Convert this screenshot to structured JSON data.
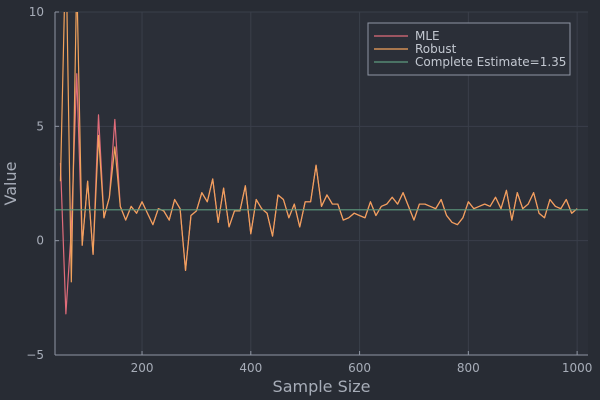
{
  "colors": {
    "background": "#282c34",
    "plot_background": "#2b2f38",
    "grid": "#3a3f4a",
    "axis": "#8f96a3",
    "text": "#a7adb8",
    "mle": "#e06c7a",
    "robust": "#f2a25c",
    "complete": "#5d9a7e"
  },
  "chart_data": {
    "type": "line",
    "xlabel": "Sample Size",
    "ylabel": "Value",
    "xlim": [
      40,
      1020
    ],
    "ylim": [
      -5,
      10
    ],
    "xticks": [
      200,
      400,
      600,
      800,
      1000
    ],
    "yticks": [
      -5,
      0,
      5,
      10
    ],
    "grid": true,
    "legend_position": "top-right",
    "series": [
      {
        "name": "MLE",
        "x": [
          50,
          60,
          70,
          80,
          90,
          100,
          110,
          120,
          130,
          140,
          150,
          160,
          170,
          180,
          190,
          200,
          210,
          220,
          230,
          240,
          250,
          260,
          270,
          280,
          290,
          300,
          310,
          320,
          330,
          340,
          350,
          360,
          370,
          380,
          390,
          400,
          410,
          420,
          430,
          440,
          450,
          460,
          470,
          480,
          490,
          500,
          510,
          520,
          530,
          540,
          550,
          560,
          570,
          580,
          590,
          600,
          610,
          620,
          630,
          640,
          650,
          660,
          670,
          680,
          690,
          700,
          710,
          720,
          730,
          740,
          750,
          760,
          770,
          780,
          790,
          800,
          810,
          820,
          830,
          840,
          850,
          860,
          870,
          880,
          890,
          900,
          910,
          920,
          930,
          940,
          950,
          960,
          970,
          980,
          990,
          1000
        ],
        "y": [
          3.4,
          -3.2,
          0.5,
          7.3,
          -0.2,
          2.6,
          -0.6,
          5.5,
          1.0,
          1.9,
          5.3,
          1.5,
          0.9,
          1.5,
          1.2,
          1.7,
          1.2,
          0.7,
          1.4,
          1.3,
          0.9,
          1.8,
          1.4,
          -1.3,
          1.1,
          1.3,
          2.1,
          1.7,
          2.7,
          0.8,
          2.3,
          0.6,
          1.3,
          1.3,
          2.4,
          0.3,
          1.8,
          1.4,
          1.2,
          0.2,
          2.0,
          1.8,
          1.0,
          1.6,
          0.6,
          1.7,
          1.7,
          3.3,
          1.5,
          2.0,
          1.6,
          1.6,
          0.9,
          1.0,
          1.2,
          1.1,
          1.0,
          1.7,
          1.1,
          1.5,
          1.6,
          1.9,
          1.6,
          2.1,
          1.5,
          0.9,
          1.6,
          1.6,
          1.5,
          1.4,
          1.8,
          1.1,
          0.8,
          0.7,
          1.0,
          1.7,
          1.4,
          1.5,
          1.6,
          1.5,
          1.9,
          1.4,
          2.2,
          0.9,
          2.1,
          1.4,
          1.6,
          2.1,
          1.2,
          1.0,
          1.8,
          1.5,
          1.4,
          1.8,
          1.2,
          1.4
        ]
      },
      {
        "name": "Robust",
        "x": [
          50,
          60,
          70,
          80,
          90,
          100,
          110,
          120,
          130,
          140,
          150,
          160,
          170,
          180,
          190,
          200,
          210,
          220,
          230,
          240,
          250,
          260,
          270,
          280,
          290,
          300,
          310,
          320,
          330,
          340,
          350,
          360,
          370,
          380,
          390,
          400,
          410,
          420,
          430,
          440,
          450,
          460,
          470,
          480,
          490,
          500,
          510,
          520,
          530,
          540,
          550,
          560,
          570,
          580,
          590,
          600,
          610,
          620,
          630,
          640,
          650,
          660,
          670,
          680,
          690,
          700,
          710,
          720,
          730,
          740,
          750,
          760,
          770,
          780,
          790,
          800,
          810,
          820,
          830,
          840,
          850,
          860,
          870,
          880,
          890,
          900,
          910,
          920,
          930,
          940,
          950,
          960,
          970,
          980,
          990,
          1000
        ],
        "y": [
          2.6,
          13.0,
          -1.8,
          11.5,
          -0.2,
          2.6,
          -0.6,
          4.6,
          1.0,
          1.9,
          4.1,
          1.5,
          0.9,
          1.5,
          1.2,
          1.7,
          1.2,
          0.7,
          1.4,
          1.3,
          0.9,
          1.8,
          1.4,
          -1.3,
          1.1,
          1.3,
          2.1,
          1.7,
          2.7,
          0.8,
          2.3,
          0.6,
          1.3,
          1.3,
          2.4,
          0.3,
          1.8,
          1.4,
          1.2,
          0.2,
          2.0,
          1.8,
          1.0,
          1.6,
          0.6,
          1.7,
          1.7,
          3.3,
          1.5,
          2.0,
          1.6,
          1.6,
          0.9,
          1.0,
          1.2,
          1.1,
          1.0,
          1.7,
          1.1,
          1.5,
          1.6,
          1.9,
          1.6,
          2.1,
          1.5,
          0.9,
          1.6,
          1.6,
          1.5,
          1.4,
          1.8,
          1.1,
          0.8,
          0.7,
          1.0,
          1.7,
          1.4,
          1.5,
          1.6,
          1.5,
          1.9,
          1.4,
          2.2,
          0.9,
          2.1,
          1.4,
          1.6,
          2.1,
          1.2,
          1.0,
          1.8,
          1.5,
          1.4,
          1.8,
          1.2,
          1.4
        ]
      },
      {
        "name": "Complete Estimate=1.35",
        "hline": 1.35
      }
    ]
  }
}
